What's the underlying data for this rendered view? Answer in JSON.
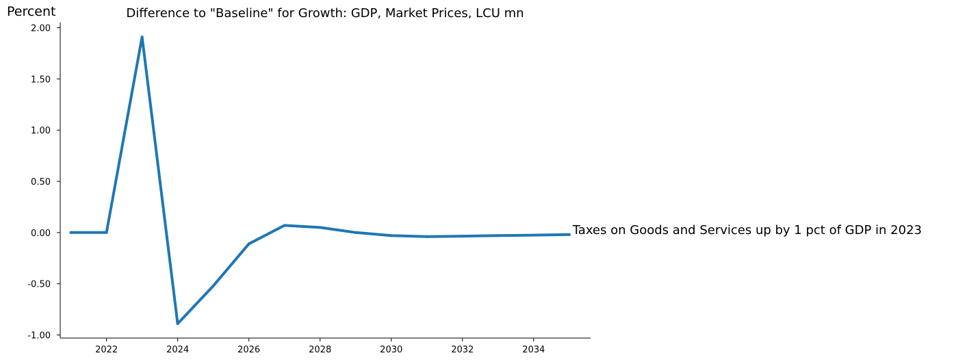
{
  "chart_data": {
    "type": "line",
    "title": "Difference to \"Baseline\" for Growth: GDP, Market Prices, LCU mn",
    "ylabel": "Percent",
    "xlabel": "",
    "xlim": [
      2020.7,
      2035.6
    ],
    "ylim": [
      -1.03,
      2.05
    ],
    "x_ticks": [
      2022,
      2024,
      2026,
      2028,
      2030,
      2032,
      2034
    ],
    "y_ticks": [
      -1.0,
      -0.5,
      0.0,
      0.5,
      1.0,
      1.5,
      2.0
    ],
    "y_tick_labels": [
      "-1.00",
      "-0.50",
      "0.00",
      "0.50",
      "1.00",
      "1.50",
      "2.00"
    ],
    "grid": false,
    "series": [
      {
        "name": "Taxes on Goods and Services up by 1 pct of GDP in 2023",
        "color": "#1f77b4",
        "x": [
          2021,
          2022,
          2023,
          2024,
          2025,
          2026,
          2027,
          2028,
          2029,
          2030,
          2031,
          2032,
          2033,
          2034,
          2035
        ],
        "values": [
          0.0,
          0.0,
          1.91,
          -0.89,
          -0.52,
          -0.11,
          0.07,
          0.05,
          0.0,
          -0.03,
          -0.04,
          -0.035,
          -0.03,
          -0.025,
          -0.02
        ]
      }
    ]
  }
}
